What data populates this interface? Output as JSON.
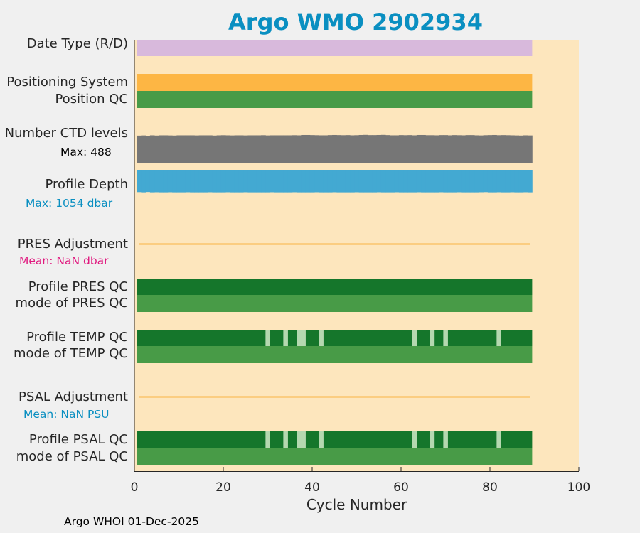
{
  "title": "Argo WMO 2902934",
  "footer": "Argo WHOI 01-Dec-2025",
  "rows": {
    "date_type": "Date Type (R/D)",
    "positioning": "Positioning System",
    "position_qc": "Position QC",
    "ctd_levels": "Number CTD levels",
    "ctd_max": "Max: 488",
    "profile_depth": "Profile Depth",
    "depth_max": "Max: 1054 dbar",
    "pres_adj": "PRES Adjustment",
    "pres_mean": "Mean:  NaN dbar",
    "profile_pres_qc": "Profile PRES QC",
    "mode_pres_qc": "mode of PRES QC",
    "profile_temp_qc": "Profile TEMP QC",
    "mode_temp_qc": "mode of TEMP QC",
    "psal_adj": "PSAL Adjustment",
    "psal_mean": "Mean:  NaN PSU",
    "profile_psal_qc": "Profile PSAL QC",
    "mode_psal_qc": "mode of PSAL QC"
  },
  "colors": {
    "plot_bg": "#fde6bd",
    "date_type": "#d8b9dc",
    "positioning": "#fdb644",
    "qc_good": "#489b47",
    "qc_dark": "#15762b",
    "qc_light": "#b5d8b0",
    "ctd": "#767676",
    "depth": "#43a9d2",
    "adjustment": "#f9b445",
    "pres_mean": "#e0187e",
    "depth_max": "#0a8fc1",
    "psal_mean": "#0a8fc1"
  },
  "chart_data": {
    "type": "bar",
    "xlabel": "Cycle Number",
    "xlim": [
      0,
      100
    ],
    "xticks": [
      0,
      20,
      40,
      60,
      80,
      100
    ],
    "cycles": [
      1,
      89
    ],
    "temp_qc_light_cycles": [
      30,
      34,
      37,
      38,
      42,
      63,
      67,
      70,
      82
    ],
    "psal_qc_light_cycles": [
      30,
      34,
      37,
      38,
      42,
      63,
      67,
      70,
      82
    ],
    "ctd_levels": [
      465,
      468,
      462,
      470,
      466,
      470,
      470,
      468,
      466,
      470,
      470,
      470,
      470,
      468,
      470,
      470,
      470,
      466,
      470,
      472,
      470,
      468,
      470,
      470,
      468,
      470,
      470,
      470,
      472,
      468,
      470,
      470,
      470,
      470,
      470,
      472,
      470,
      476,
      476,
      474,
      472,
      470,
      470,
      474,
      476,
      474,
      472,
      474,
      470,
      472,
      476,
      478,
      474,
      474,
      476,
      478,
      474,
      470,
      470,
      474,
      472,
      474,
      470,
      476,
      476,
      472,
      472,
      470,
      474,
      474,
      470,
      474,
      472,
      470,
      474,
      474,
      470,
      468,
      472,
      474,
      476,
      472,
      474,
      472,
      470,
      468,
      466,
      470,
      468
    ],
    "ctd_max": 488,
    "profile_depth": [
      1000,
      1010,
      995,
      1010,
      1005,
      1010,
      1010,
      1005,
      1010,
      1010,
      1010,
      1005,
      1010,
      1010,
      1010,
      1010,
      1005,
      1010,
      1010,
      1010,
      1005,
      1010,
      1010,
      1010,
      1005,
      1010,
      1010,
      1010,
      1010,
      1010,
      1005,
      1010,
      1010,
      1010,
      1010,
      1005,
      1010,
      1010,
      1010,
      1010,
      1005,
      1010,
      1010,
      1010,
      1005,
      1010,
      1010,
      1010,
      1010,
      1005,
      1010,
      1010,
      1010,
      1010,
      1005,
      1010,
      1010,
      1010,
      1005,
      1010,
      1010,
      1010,
      1010,
      1005,
      1010,
      1010,
      1010,
      1010,
      1005,
      1010,
      1010,
      1010,
      1005,
      1010,
      1010,
      1010,
      1010,
      1005,
      1000,
      1010,
      1010,
      1005,
      1010,
      1010,
      1005,
      1010,
      1010,
      1005,
      1010
    ],
    "depth_max": 1054
  }
}
